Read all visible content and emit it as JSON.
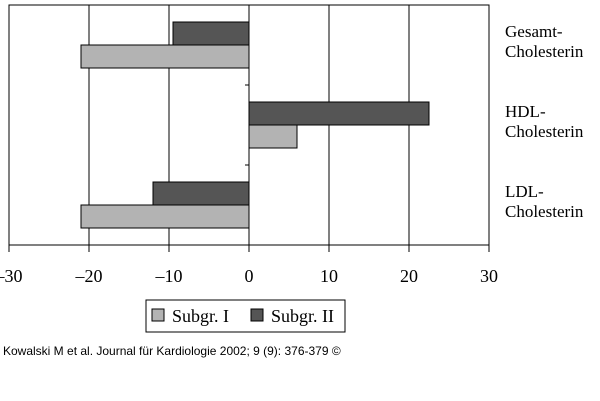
{
  "chart_data": {
    "type": "bar",
    "orientation": "horizontal",
    "categories": [
      [
        "Gesamt-",
        "Cholesterin"
      ],
      [
        "HDL-",
        "Cholesterin"
      ],
      [
        "LDL-",
        "Cholesterin"
      ]
    ],
    "series": [
      {
        "name": "Subgr. I",
        "color": "#b3b3b3",
        "values": [
          -21,
          6,
          -21
        ]
      },
      {
        "name": "Subgr. II",
        "color": "#555555",
        "values": [
          -9.5,
          22.5,
          -12
        ]
      }
    ],
    "xlim": [
      -30,
      30
    ],
    "xticks": [
      "–30",
      "–20",
      "–10",
      "0",
      "10",
      "20",
      "30"
    ],
    "xtick_values": [
      -30,
      -20,
      -10,
      0,
      10,
      20,
      30
    ],
    "grid": "vertical",
    "legend": "bottom"
  },
  "caption": "Kowalski M et al. Journal für Kardiologie 2002; 9 (9): 376-379 ©"
}
